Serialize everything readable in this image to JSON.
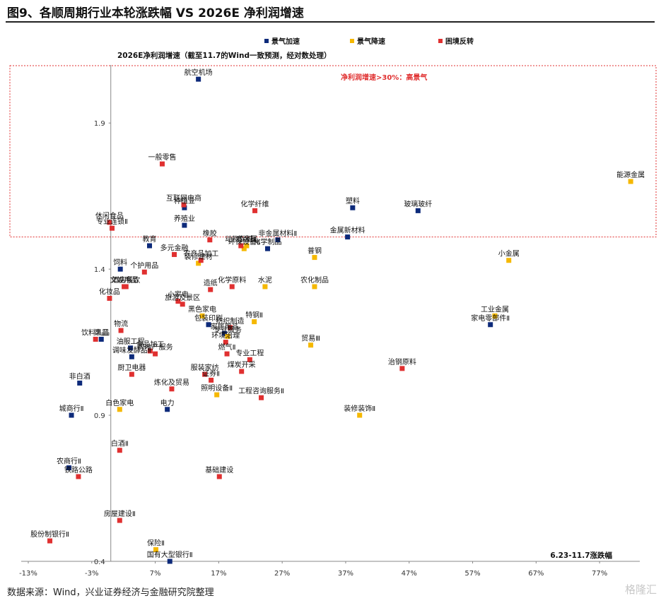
{
  "figure": {
    "title": "图9、各顺周期行业本轮涨跌幅 VS 2026E 净利润增速",
    "source": "数据来源：Wind，兴业证券经济与金融研究院整理",
    "watermark": "格隆汇"
  },
  "chart_data": {
    "type": "scatter",
    "ylabel": "2026E净利润增速（截至11.7的Wind一致预测，经对数处理）",
    "xlabel": "6.23-11.7涨跌幅",
    "x_ticks": [
      "-13%",
      "-3%",
      "7%",
      "17%",
      "27%",
      "37%",
      "47%",
      "57%",
      "67%",
      "77%"
    ],
    "x_tick_values": [
      -13,
      -3,
      7,
      17,
      27,
      37,
      47,
      57,
      67,
      77
    ],
    "y_ticks": [
      "0.4",
      "0.9",
      "1.4",
      "1.9"
    ],
    "y_tick_values": [
      0.4,
      0.9,
      1.4,
      1.9
    ],
    "xlim": [
      -13,
      83
    ],
    "ylim": [
      0.4,
      2.06
    ],
    "grid": false,
    "legend_position": "top-center",
    "highlight_region": {
      "label": "净利润增速>30%：高景气",
      "y_from": 1.51,
      "color": "#e03030"
    },
    "series": [
      {
        "name": "景气加速",
        "color": "#0d2a7a",
        "points": [
          {
            "label": "航空机场",
            "x": 13.8,
            "y": 2.05
          },
          {
            "label": "塑料",
            "x": 38.1,
            "y": 1.61
          },
          {
            "label": "玻璃玻纤",
            "x": 48.4,
            "y": 1.6
          },
          {
            "label": "种植业",
            "x": 11.6,
            "y": 1.61
          },
          {
            "label": "养殖业",
            "x": 11.6,
            "y": 1.55
          },
          {
            "label": "金属新材料",
            "x": 37.3,
            "y": 1.51
          },
          {
            "label": "非金属材料Ⅱ",
            "x": 26.3,
            "y": 1.5
          },
          {
            "label": "教育",
            "x": 6.1,
            "y": 1.48
          },
          {
            "label": "化学制品",
            "x": 24.7,
            "y": 1.47
          },
          {
            "label": "饲料",
            "x": 1.5,
            "y": 1.4
          },
          {
            "label": "家电零部件Ⅱ",
            "x": 59.8,
            "y": 1.21
          },
          {
            "label": "包装印刷",
            "x": 15.4,
            "y": 1.21
          },
          {
            "label": "家居用品",
            "x": 17.9,
            "y": 1.18
          },
          {
            "label": "饰品",
            "x": -1.5,
            "y": 1.16
          },
          {
            "label": "油服工程",
            "x": 3.1,
            "y": 1.13
          },
          {
            "label": "调味发酵品Ⅱ",
            "x": 3.3,
            "y": 1.1
          },
          {
            "label": "非白酒",
            "x": -4.9,
            "y": 1.01
          },
          {
            "label": "城商行Ⅱ",
            "x": -6.2,
            "y": 0.9
          },
          {
            "label": "电力",
            "x": 8.9,
            "y": 0.92
          },
          {
            "label": "农商行Ⅱ",
            "x": -6.6,
            "y": 0.72
          },
          {
            "label": "国有大型银行Ⅱ",
            "x": 9.3,
            "y": 0.4
          }
        ]
      },
      {
        "name": "景气降速",
        "color": "#f5b800",
        "points": [
          {
            "label": "能源金属",
            "x": 81.9,
            "y": 1.7
          },
          {
            "label": "环保设备Ⅱ",
            "x": 21.0,
            "y": 1.47
          },
          {
            "label": "贵金属",
            "x": 21.4,
            "y": 1.48
          },
          {
            "label": "普钢",
            "x": 32.1,
            "y": 1.44
          },
          {
            "label": "小金属",
            "x": 62.7,
            "y": 1.43
          },
          {
            "label": "装修建材",
            "x": 13.8,
            "y": 1.42
          },
          {
            "label": "水泥",
            "x": 24.3,
            "y": 1.34
          },
          {
            "label": "农化制品",
            "x": 32.1,
            "y": 1.34
          },
          {
            "label": "工业金属",
            "x": 60.5,
            "y": 1.24
          },
          {
            "label": "黑色家电",
            "x": 14.4,
            "y": 1.24
          },
          {
            "label": "特钢Ⅱ",
            "x": 22.6,
            "y": 1.22
          },
          {
            "label": "专业服务",
            "x": 18.4,
            "y": 1.17
          },
          {
            "label": "贸易Ⅲ",
            "x": 31.5,
            "y": 1.14
          },
          {
            "label": "照明设备Ⅱ",
            "x": 16.7,
            "y": 0.97
          },
          {
            "label": "白色家电",
            "x": 1.4,
            "y": 0.92
          },
          {
            "label": "装修装饰Ⅱ",
            "x": 39.2,
            "y": 0.9
          },
          {
            "label": "保险Ⅱ",
            "x": 7.1,
            "y": 0.44
          }
        ]
      },
      {
        "name": "困境反转",
        "color": "#e03030",
        "points": [
          {
            "label": "一般零售",
            "x": 8.1,
            "y": 1.76
          },
          {
            "label": "互联网电商",
            "x": 11.5,
            "y": 1.62
          },
          {
            "label": "化学纤维",
            "x": 22.7,
            "y": 1.6
          },
          {
            "label": "休闲食品",
            "x": -0.2,
            "y": 1.56
          },
          {
            "label": "专业连锁Ⅱ",
            "x": 0.2,
            "y": 1.54
          },
          {
            "label": "橡胶",
            "x": 15.6,
            "y": 1.5
          },
          {
            "label": "动物保健Ⅱ",
            "x": 20.5,
            "y": 1.48
          },
          {
            "label": "农产品加工",
            "x": 14.2,
            "y": 1.43
          },
          {
            "label": "多元金融",
            "x": 10.0,
            "y": 1.45
          },
          {
            "label": "个护用品",
            "x": 5.3,
            "y": 1.39
          },
          {
            "label": "酒店餐饮",
            "x": 2.4,
            "y": 1.34
          },
          {
            "label": "造纸",
            "x": 15.7,
            "y": 1.33
          },
          {
            "label": "化学原料",
            "x": 19.1,
            "y": 1.34
          },
          {
            "label": "文娱用品",
            "x": 2.1,
            "y": 1.34
          },
          {
            "label": "化妆品",
            "x": -0.2,
            "y": 1.3
          },
          {
            "label": "小家电",
            "x": 10.6,
            "y": 1.29
          },
          {
            "label": "旅游及景区",
            "x": 11.3,
            "y": 1.28
          },
          {
            "label": "纺织制造",
            "x": 18.8,
            "y": 1.2
          },
          {
            "label": "物流",
            "x": 1.6,
            "y": 1.19
          },
          {
            "label": "饮料乳品",
            "x": -2.4,
            "y": 1.16
          },
          {
            "label": "环境治理",
            "x": 18.1,
            "y": 1.15
          },
          {
            "label": "食品加工",
            "x": 6.2,
            "y": 1.12
          },
          {
            "label": "房地产服务",
            "x": 7.0,
            "y": 1.11
          },
          {
            "label": "燃气Ⅱ",
            "x": 18.3,
            "y": 1.11
          },
          {
            "label": "专业工程",
            "x": 21.9,
            "y": 1.09
          },
          {
            "label": "治钢原料",
            "x": 45.9,
            "y": 1.06
          },
          {
            "label": "厨卫电器",
            "x": 3.3,
            "y": 1.04
          },
          {
            "label": "服装家纺",
            "x": 14.8,
            "y": 1.04
          },
          {
            "label": "煤炭开采",
            "x": 20.6,
            "y": 1.05
          },
          {
            "label": "炼化及贸易",
            "x": 9.6,
            "y": 0.99
          },
          {
            "label": "工程咨询服务Ⅱ",
            "x": 23.7,
            "y": 0.96
          },
          {
            "label": "证券Ⅱ",
            "x": 15.8,
            "y": 1.02
          },
          {
            "label": "白酒Ⅱ",
            "x": 1.4,
            "y": 0.78
          },
          {
            "label": "基础建设",
            "x": 17.1,
            "y": 0.69
          },
          {
            "label": "铁路公路",
            "x": -5.1,
            "y": 0.69
          },
          {
            "label": "房屋建设Ⅱ",
            "x": 1.4,
            "y": 0.54
          },
          {
            "label": "股份制银行Ⅱ",
            "x": -9.6,
            "y": 0.47
          }
        ]
      }
    ]
  }
}
